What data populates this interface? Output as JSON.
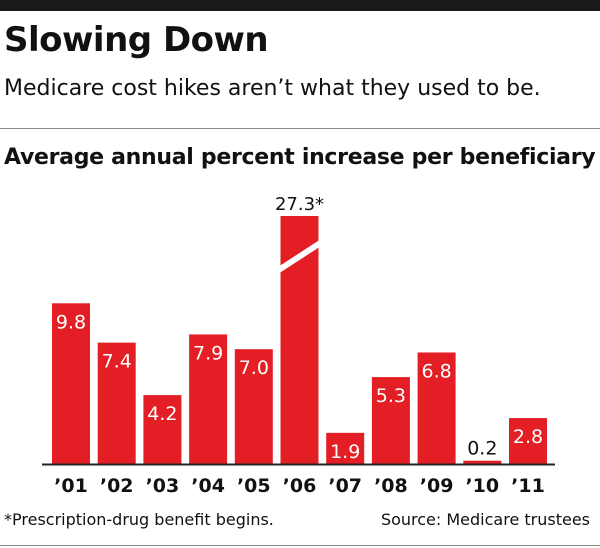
{
  "header": {
    "title": "Slowing Down",
    "subtitle": "Medicare cost hikes aren’t what they used to be."
  },
  "footer": {
    "footnote": "*Prescription-drug benefit begins.",
    "source": "Source: Medicare trustees"
  },
  "colors": {
    "bar": "#e31e24",
    "axis": "#222222",
    "label_inside": "#ffffff",
    "label_outside": "#111111",
    "break_mark": "#ffffff"
  },
  "chart_data": {
    "type": "bar",
    "title": "Average annual percent increase per beneficiary",
    "categories": [
      "’01",
      "’02",
      "’03",
      "’04",
      "’05",
      "’06",
      "’07",
      "’08",
      "’09",
      "’10",
      "’11"
    ],
    "values": [
      9.8,
      7.4,
      4.2,
      7.9,
      7.0,
      27.3,
      1.9,
      5.3,
      6.8,
      0.2,
      2.8
    ],
    "data_labels": [
      "9.8",
      "7.4",
      "4.2",
      "7.9",
      "7.0",
      "27.3*",
      "1.9",
      "5.3",
      "6.8",
      "0.2",
      "2.8"
    ],
    "broken_bars": [
      "’06"
    ],
    "xlabel": "",
    "ylabel": "",
    "grid": false
  }
}
